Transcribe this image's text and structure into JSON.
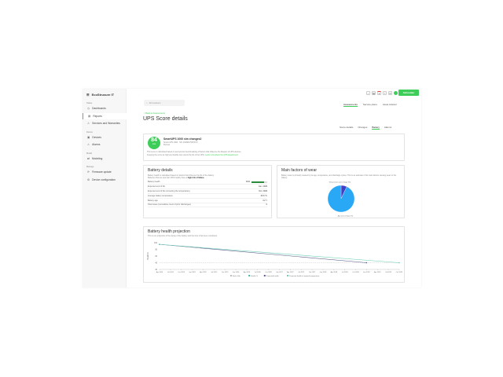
{
  "app": {
    "logo": "EcoStruxure IT",
    "brand_button": "Schneider"
  },
  "sidebar": {
    "sections": [
      {
        "label": "Status",
        "items": [
          {
            "label": "Dashboards",
            "icon": "dashboard-icon"
          },
          {
            "label": "Reports",
            "icon": "report-icon",
            "active": true
          },
          {
            "label": "Services and Warranties",
            "icon": "services-icon"
          }
        ]
      },
      {
        "label": "Device",
        "items": [
          {
            "label": "Devices",
            "icon": "device-icon"
          },
          {
            "label": "Alarms",
            "icon": "alarm-icon"
          }
        ]
      },
      {
        "label": "Model",
        "items": [
          {
            "label": "Modeling",
            "icon": "modeling-icon"
          }
        ]
      },
      {
        "label": "Manage",
        "items": [
          {
            "label": "Firmware update",
            "icon": "firmware-icon"
          },
          {
            "label": "Device configuration",
            "icon": "config-icon"
          }
        ]
      }
    ]
  },
  "search": {
    "placeholder": "All locations"
  },
  "top_tabs": [
    {
      "label": "Assessments",
      "active": true
    },
    {
      "label": "Service plans"
    },
    {
      "label": "Asset Advisor"
    }
  ],
  "back_link": "< Back to Assessments",
  "page_title": "UPS Score details",
  "sub_tabs": [
    {
      "label": "Score details"
    },
    {
      "label": "Changes"
    },
    {
      "label": "Battery",
      "active": true
    },
    {
      "label": "Alarms"
    }
  ],
  "score": {
    "value": "84",
    "level": "Low",
    "device_name": "SmartUPS 1000 sim changes2",
    "device_model": "Smart-UPS 1000 · SN: AS0981760XXXX",
    "location": "Rennes",
    "description": "This score is calculated based on anonymous benchmarking of factors that influence the lifespan of UPS devices.",
    "description2": "Keeping the score as high as possible can extend the life of the UPS.",
    "learn_more": "Learn more about the UPS assessment"
  },
  "battery": {
    "title": "Battery details",
    "desc": "Battery health is calculated based on factors that influence the life of the battery.",
    "desc2": "Batteries that are less than 40% healthy have a",
    "desc_bold": "high risk of failure.",
    "health_percent": 81,
    "rows": [
      {
        "label": "Battery health",
        "value": "81%"
      },
      {
        "label": "Expected end of life",
        "value": "Jan. 2029"
      },
      {
        "label": "Expected end of life (correcting the temperature)",
        "value": "Oct. 2029"
      },
      {
        "label": "Average battery temperature",
        "value": "30.6 °C"
      },
      {
        "label": "Battery age",
        "value": "3.2 Y"
      },
      {
        "label": "Total cases (cumulative count of prior discharges)",
        "value": "0"
      }
    ]
  },
  "wear": {
    "title": "Main factors of wear",
    "desc": "Battery wear is primarily caused by its age, temperature, and discharge cycles. This is an estimate of the main factors causing wear on the battery.",
    "slices": [
      {
        "label": "Temperature percentage (%)",
        "value": 7,
        "color": "#3f3fc8"
      },
      {
        "label": "Age percentage (%)",
        "value": 93,
        "color": "#29a8f5"
      }
    ]
  },
  "chart_data": {
    "type": "line",
    "title": "Battery health projection",
    "subtitle": "This is our projection of the decay of the battery and the time it has been monitored.",
    "ylabel": "Health %",
    "ylim": [
      20,
      100
    ],
    "yticks": [
      20,
      40,
      60,
      80,
      100
    ],
    "xticks": [
      "Apr 2024",
      "Jul 2024",
      "Oct 2024",
      "Jan 2025",
      "Apr 2025",
      "Jul 2025",
      "Oct 2025",
      "Jan 2026",
      "Apr 2026",
      "Jul 2026",
      "Oct 2026",
      "Jan 2027",
      "Apr 2027",
      "Jul 2027",
      "Oct 2027",
      "Jan 2028",
      "Apr 2028",
      "Jul 2028",
      "Oct 2028",
      "Jan 2029",
      "Apr 2029",
      "Jul 2029",
      "Oct 2029"
    ],
    "series": [
      {
        "name": "End of life",
        "style": "dashed",
        "color": "#bbbbbb",
        "points": [
          [
            "Apr 2024",
            40
          ],
          [
            "Oct 2029",
            40
          ]
        ]
      },
      {
        "name": "Health %",
        "color": "#3cb8a0",
        "points": [
          [
            "Apr 2024",
            95
          ]
        ]
      },
      {
        "name": "Projected health",
        "color": "#5a5a8a",
        "points": [
          [
            "Apr 2024",
            95
          ],
          [
            "Jan 2029",
            40
          ]
        ]
      },
      {
        "name": "Projected health at optimal temperature",
        "color": "#6fd0b8",
        "points": [
          [
            "Apr 2024",
            95
          ],
          [
            "Oct 2029",
            40
          ]
        ]
      }
    ]
  }
}
